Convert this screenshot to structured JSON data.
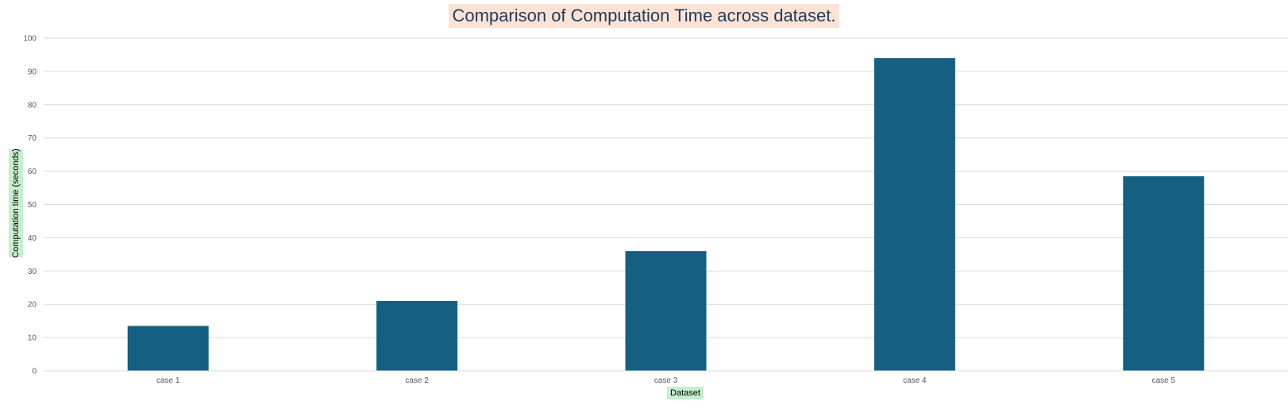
{
  "chart_data": {
    "type": "bar",
    "title": "Comparison of Computation Time across dataset.",
    "xlabel": "Dataset",
    "ylabel": "Computation time (seconds)",
    "categories": [
      "case 1",
      "case 2",
      "case 3",
      "case 4",
      "case 5"
    ],
    "values": [
      13.5,
      21,
      36,
      94,
      58.5
    ],
    "ylim": [
      0,
      100
    ],
    "yticks": [
      "0",
      "10",
      "20",
      "30",
      "40",
      "50",
      "60",
      "70",
      "80",
      "90",
      "100"
    ],
    "grid": true,
    "legend": "none",
    "bar_color": "#156082",
    "title_highlight": "#fce3d6",
    "label_highlight": "#c6efce"
  }
}
